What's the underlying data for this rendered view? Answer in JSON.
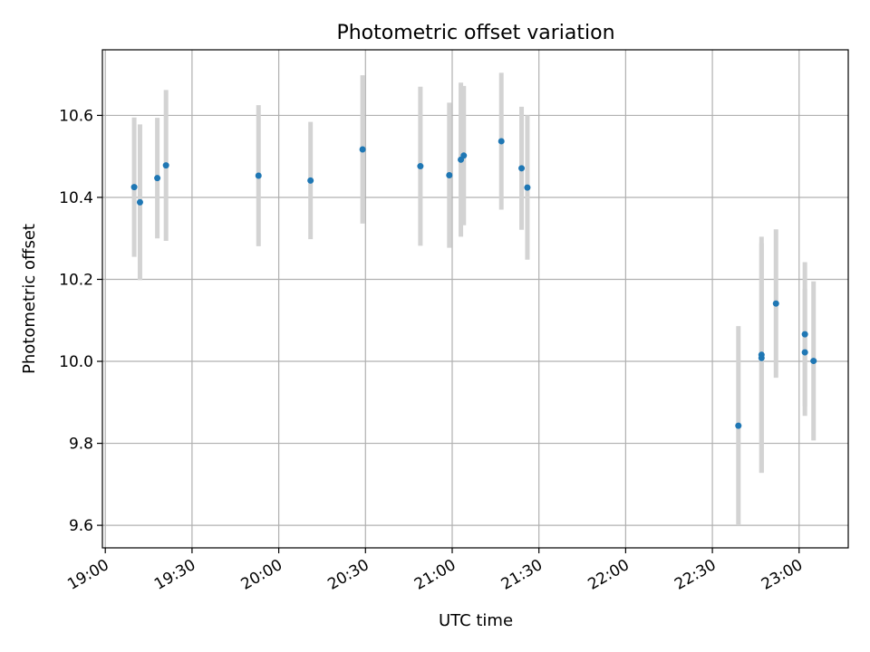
{
  "chart_data": {
    "type": "scatter",
    "title": "Photometric offset variation",
    "xlabel": "UTC time",
    "ylabel": "Photometric offset",
    "grid": true,
    "x_axis": "time",
    "xlim": [
      "18:59",
      "23:17"
    ],
    "ylim": [
      9.545,
      10.76
    ],
    "x_ticks": [
      "19:00",
      "19:30",
      "20:00",
      "20:30",
      "21:00",
      "21:30",
      "22:00",
      "22:30",
      "23:00"
    ],
    "y_ticks": [
      "9.6",
      "9.8",
      "10.0",
      "10.2",
      "10.4",
      "10.6"
    ],
    "colors": {
      "marker": "#1f77b4",
      "errorbar": "#d3d3d3",
      "grid": "#b0b0b0"
    },
    "series": [
      {
        "points": [
          {
            "x": "19:10",
            "y": 10.425,
            "err": 0.17
          },
          {
            "x": "19:12",
            "y": 10.388,
            "err": 0.19
          },
          {
            "x": "19:18",
            "y": 10.447,
            "err": 0.147
          },
          {
            "x": "19:21",
            "y": 10.478,
            "err": 0.184
          },
          {
            "x": "19:53",
            "y": 10.453,
            "err": 0.172
          },
          {
            "x": "20:11",
            "y": 10.441,
            "err": 0.143
          },
          {
            "x": "20:29",
            "y": 10.517,
            "err": 0.181
          },
          {
            "x": "20:49",
            "y": 10.476,
            "err": 0.194
          },
          {
            "x": "20:59",
            "y": 10.454,
            "err": 0.177
          },
          {
            "x": "21:03",
            "y": 10.492,
            "err": 0.188
          },
          {
            "x": "21:04",
            "y": 10.502,
            "err": 0.17
          },
          {
            "x": "21:17",
            "y": 10.537,
            "err": 0.167
          },
          {
            "x": "21:24",
            "y": 10.471,
            "err": 0.15
          },
          {
            "x": "21:26",
            "y": 10.424,
            "err": 0.176
          },
          {
            "x": "22:39",
            "y": 9.843,
            "err": 0.243
          },
          {
            "x": "22:47",
            "y": 10.016,
            "err": 0.288
          },
          {
            "x": "22:47",
            "y": 10.008,
            "err": 0.28
          },
          {
            "x": "22:52",
            "y": 10.141,
            "err": 0.181
          },
          {
            "x": "23:02",
            "y": 10.066,
            "err": 0.176
          },
          {
            "x": "23:02",
            "y": 10.022,
            "err": 0.155
          },
          {
            "x": "23:05",
            "y": 10.001,
            "err": 0.194
          }
        ]
      }
    ]
  }
}
